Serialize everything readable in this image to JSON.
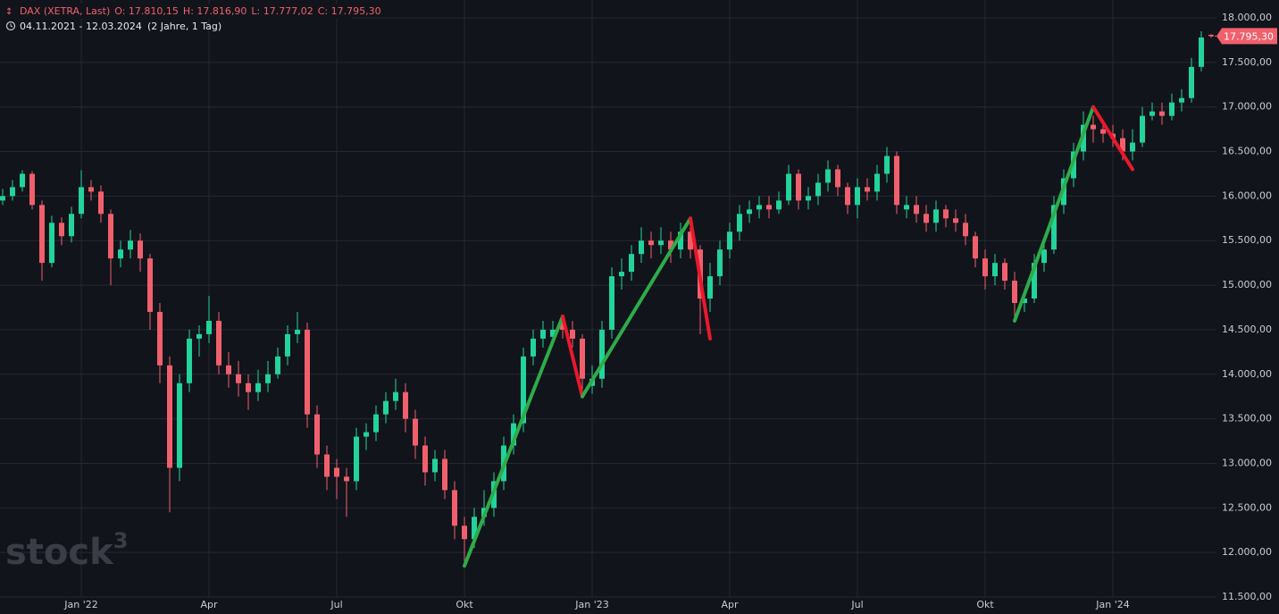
{
  "chart_data": {
    "type": "candlestick",
    "title": "DAX (XETRA, Last)",
    "ohlc_labels": [
      "O: 17.810,15",
      "H: 17.816,90",
      "L: 17.777,02",
      "C: 17.795,30"
    ],
    "date_range": "04.11.2021 - 12.03.2024",
    "period": "(2 Jahre, 1 Tag)",
    "watermark": {
      "text": "stock",
      "sup": "3"
    },
    "up_color": "#22d39a",
    "down_color": "#f0606c",
    "categories": [
      null,
      null,
      null,
      null,
      null,
      null,
      null,
      null,
      "Jan '22",
      null,
      null,
      null,
      null,
      null,
      null,
      null,
      null,
      null,
      null,
      null,
      null,
      "Apr",
      null,
      null,
      null,
      null,
      null,
      null,
      null,
      null,
      null,
      null,
      null,
      null,
      "Jul",
      null,
      null,
      null,
      null,
      null,
      null,
      null,
      null,
      null,
      null,
      null,
      null,
      "Okt",
      null,
      null,
      null,
      null,
      null,
      null,
      null,
      null,
      null,
      null,
      null,
      null,
      "Jan '23",
      null,
      null,
      null,
      null,
      null,
      null,
      null,
      null,
      null,
      null,
      null,
      null,
      null,
      "Apr",
      null,
      null,
      null,
      null,
      null,
      null,
      null,
      null,
      null,
      null,
      null,
      null,
      "Jul",
      null,
      null,
      null,
      null,
      null,
      null,
      null,
      null,
      null,
      null,
      null,
      null,
      "Okt",
      null,
      null,
      null,
      null,
      null,
      null,
      null,
      null,
      null,
      null,
      null,
      null,
      "Jan '24",
      null,
      null,
      null,
      null,
      null,
      null,
      null,
      null,
      null,
      null
    ],
    "open": [
      15950,
      16000,
      16100,
      16250,
      15900,
      15250,
      15700,
      15550,
      15800,
      16100,
      16050,
      15800,
      15300,
      15400,
      15500,
      15300,
      14700,
      14100,
      12950,
      13900,
      14400,
      14450,
      14600,
      14100,
      14000,
      13900,
      13800,
      13900,
      14000,
      14200,
      14450,
      14500,
      13550,
      13100,
      12950,
      12850,
      12800,
      13300,
      13350,
      13550,
      13700,
      13800,
      13500,
      13200,
      12900,
      13050,
      12700,
      12300,
      12150,
      12400,
      12500,
      12800,
      13200,
      13450,
      14200,
      14400,
      14420,
      14580,
      14500,
      14400,
      13870,
      13950,
      14500,
      15100,
      15150,
      15350,
      15500,
      15450,
      15500,
      15400,
      15600,
      15400,
      14850,
      15100,
      15400,
      15600,
      15800,
      15850,
      15900,
      15850,
      15950,
      16250,
      15950,
      16000,
      16150,
      16300,
      16100,
      15900,
      16100,
      16050,
      16250,
      16450,
      15850,
      15900,
      15800,
      15700,
      15850,
      15750,
      15700,
      15550,
      15300,
      15100,
      15250,
      15050,
      14800,
      14850,
      15250,
      15400,
      15900,
      16200,
      16500,
      16800,
      16750,
      16700,
      16650,
      16500,
      16600,
      16900,
      16950,
      16900,
      17050,
      17100,
      17450,
      17810.15
    ],
    "high": [
      16080,
      16180,
      16290,
      16280,
      15950,
      15780,
      15760,
      15880,
      16290,
      16180,
      16120,
      15850,
      15500,
      15620,
      15580,
      15350,
      14800,
      14200,
      14000,
      14500,
      14550,
      14880,
      14700,
      14250,
      14150,
      14000,
      14050,
      14150,
      14300,
      14550,
      14700,
      14580,
      13650,
      13200,
      13050,
      12950,
      13400,
      13450,
      13650,
      13800,
      13950,
      13900,
      13600,
      13300,
      13150,
      13150,
      12800,
      12400,
      12500,
      12700,
      12900,
      13300,
      13550,
      14300,
      14500,
      14600,
      14600,
      14650,
      14600,
      14450,
      14100,
      14600,
      15200,
      15300,
      15450,
      15650,
      15600,
      15650,
      15600,
      15700,
      15700,
      15450,
      15250,
      15500,
      15700,
      15900,
      15950,
      16000,
      16000,
      16050,
      16350,
      16300,
      16100,
      16250,
      16400,
      16350,
      16150,
      16200,
      16200,
      16350,
      16550,
      16500,
      16000,
      16000,
      15900,
      15950,
      15900,
      15850,
      15800,
      15600,
      15400,
      15350,
      15300,
      15150,
      14950,
      15350,
      15500,
      16000,
      16300,
      16600,
      16950,
      16900,
      16850,
      16800,
      16750,
      16750,
      17000,
      17050,
      17050,
      17150,
      17200,
      17550,
      17850,
      17816.9
    ],
    "low": [
      15900,
      15950,
      16050,
      15850,
      15050,
      15200,
      15450,
      15480,
      15750,
      15950,
      15700,
      15000,
      15200,
      15300,
      15150,
      14500,
      13900,
      12450,
      12800,
      13800,
      14200,
      14350,
      14000,
      13850,
      13750,
      13600,
      13700,
      13800,
      13950,
      14100,
      14350,
      13400,
      12950,
      12700,
      12600,
      12400,
      12700,
      13150,
      13250,
      13450,
      13600,
      13350,
      13050,
      12750,
      12800,
      12600,
      12150,
      11900,
      12050,
      12300,
      12400,
      12700,
      13100,
      13350,
      14100,
      14300,
      14350,
      14400,
      14300,
      13800,
      13780,
      13850,
      14400,
      14950,
      15050,
      15250,
      15300,
      15350,
      15250,
      15300,
      15300,
      14450,
      14700,
      15000,
      15300,
      15500,
      15700,
      15750,
      15750,
      15800,
      15900,
      15850,
      15850,
      15900,
      16050,
      16000,
      15800,
      15750,
      15950,
      15950,
      16150,
      15800,
      15750,
      15700,
      15600,
      15600,
      15650,
      15600,
      15450,
      15200,
      14950,
      15000,
      14950,
      14650,
      14700,
      14800,
      15150,
      15350,
      15800,
      16100,
      16400,
      16600,
      16600,
      16550,
      16400,
      16400,
      16550,
      16850,
      16800,
      16850,
      16950,
      17050,
      17400,
      17777.02
    ],
    "close": [
      16000,
      16100,
      16250,
      15900,
      15250,
      15700,
      15550,
      15800,
      16100,
      16050,
      15800,
      15300,
      15400,
      15500,
      15300,
      14700,
      14100,
      12950,
      13900,
      14400,
      14450,
      14600,
      14100,
      14000,
      13900,
      13800,
      13900,
      14000,
      14200,
      14450,
      14500,
      13550,
      13100,
      12850,
      12850,
      12800,
      13300,
      13350,
      13550,
      13700,
      13800,
      13500,
      13200,
      12900,
      13050,
      12700,
      12300,
      12150,
      12400,
      12500,
      12800,
      13200,
      13450,
      14200,
      14400,
      14500,
      14500,
      14500,
      14400,
      13950,
      13950,
      14500,
      15100,
      15150,
      15350,
      15500,
      15450,
      15500,
      15400,
      15600,
      15400,
      14850,
      15100,
      15400,
      15600,
      15800,
      15850,
      15900,
      15850,
      15950,
      16250,
      15950,
      16000,
      16150,
      16300,
      16100,
      15900,
      16100,
      16050,
      16250,
      16450,
      15900,
      15900,
      15800,
      15700,
      15850,
      15750,
      15700,
      15550,
      15300,
      15100,
      15250,
      15050,
      14800,
      14850,
      15250,
      15400,
      15900,
      16200,
      16500,
      16800,
      16750,
      16700,
      16650,
      16500,
      16600,
      16900,
      16950,
      16900,
      17050,
      17100,
      17450,
      17780,
      17795.3
    ],
    "last_value_label": "17.795,30",
    "trendlines": [
      {
        "color": "#2eab4a",
        "points": [
          [
            47,
            11850
          ],
          [
            57,
            14650
          ]
        ]
      },
      {
        "color": "#e8192c",
        "points": [
          [
            57,
            14650
          ],
          [
            59,
            13750
          ]
        ]
      },
      {
        "color": "#2eab4a",
        "points": [
          [
            59,
            13750
          ],
          [
            70,
            15750
          ]
        ]
      },
      {
        "color": "#e8192c",
        "points": [
          [
            70,
            15750
          ],
          [
            72,
            14400
          ]
        ]
      },
      {
        "color": "#2eab4a",
        "points": [
          [
            103,
            14600
          ],
          [
            111,
            17000
          ]
        ]
      },
      {
        "color": "#e8192c",
        "points": [
          [
            111,
            17000
          ],
          [
            115,
            16300
          ]
        ]
      }
    ],
    "ylim": [
      11500,
      18000
    ],
    "yticks": [
      {
        "value": 11500,
        "label": "11.500,00"
      },
      {
        "value": 12000,
        "label": "12.000,00"
      },
      {
        "value": 12500,
        "label": "12.500,00"
      },
      {
        "value": 13000,
        "label": "13.000,00"
      },
      {
        "value": 13500,
        "label": "13.500,00"
      },
      {
        "value": 14000,
        "label": "14.000,00"
      },
      {
        "value": 14500,
        "label": "14.500,00"
      },
      {
        "value": 15000,
        "label": "15.000,00"
      },
      {
        "value": 15500,
        "label": "15.500,00"
      },
      {
        "value": 16000,
        "label": "16.000,00"
      },
      {
        "value": 16500,
        "label": "16.500,00"
      },
      {
        "value": 17000,
        "label": "17.000,00"
      },
      {
        "value": 17500,
        "label": "17.500,00"
      },
      {
        "value": 18000,
        "label": "18.000,00"
      }
    ],
    "grid": true
  }
}
